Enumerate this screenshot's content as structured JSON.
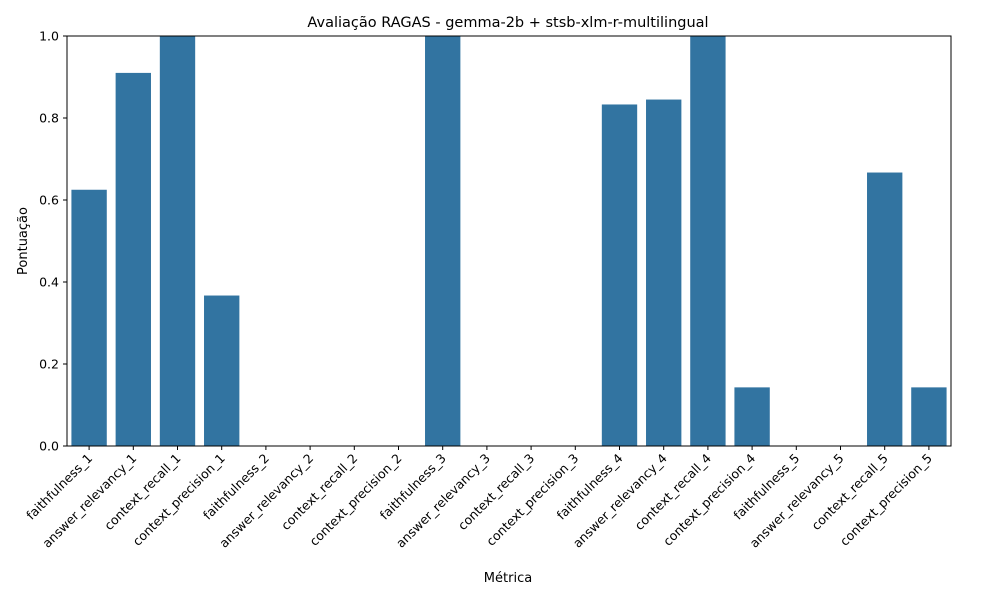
{
  "chart_data": {
    "type": "bar",
    "title": "Avaliação RAGAS - gemma-2b + stsb-xlm-r-multilingual",
    "xlabel": "Métrica",
    "ylabel": "Pontuação",
    "ylim": [
      0,
      1.0
    ],
    "yticks": [
      "0.0",
      "0.2",
      "0.4",
      "0.6",
      "0.8",
      "1.0"
    ],
    "color": "#3274a1",
    "grid": false,
    "categories": [
      "faithfulness_1",
      "answer_relevancy_1",
      "context_recall_1",
      "context_precision_1",
      "faithfulness_2",
      "answer_relevancy_2",
      "context_recall_2",
      "context_precision_2",
      "faithfulness_3",
      "answer_relevancy_3",
      "context_recall_3",
      "context_precision_3",
      "faithfulness_4",
      "answer_relevancy_4",
      "context_recall_4",
      "context_precision_4",
      "faithfulness_5",
      "answer_relevancy_5",
      "context_recall_5",
      "context_precision_5"
    ],
    "values": [
      0.625,
      0.91,
      1.0,
      0.367,
      0.0,
      0.0,
      0.0,
      0.0,
      1.0,
      0.0,
      0.0,
      0.0,
      0.833,
      0.845,
      1.0,
      0.143,
      0.0,
      0.0,
      0.667,
      0.143
    ]
  }
}
